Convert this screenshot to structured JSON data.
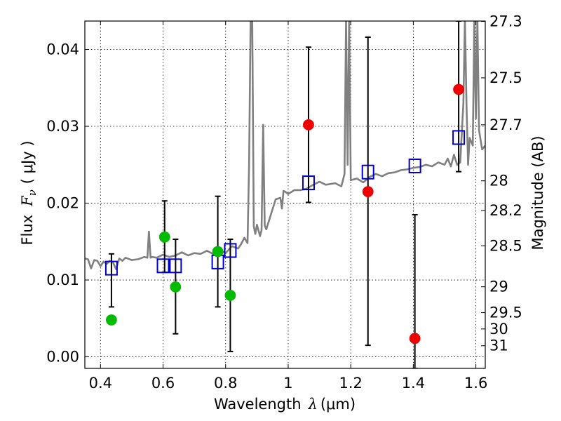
{
  "chart_data": {
    "type": "scatter",
    "xlabel": "Wavelength",
    "xlabel_symbol": "λ",
    "xlabel_unit": "(μm)",
    "ylabel": "Flux",
    "ylabel_symbol": "F",
    "ylabel_subscript": "ν",
    "ylabel_unit": "( μJy )",
    "y2label": "Magnitude (AB)",
    "xlim": [
      0.35,
      1.63
    ],
    "ylim": [
      -0.0015,
      0.0437
    ],
    "grid": true,
    "x_ticks": [
      0.4,
      0.6,
      0.8,
      1.0,
      1.2,
      1.4,
      1.6
    ],
    "x_tick_labels": [
      "0.4",
      "0.6",
      "0.8",
      "1",
      "1.2",
      "1.4",
      "1.6"
    ],
    "y_ticks": [
      0.0,
      0.01,
      0.02,
      0.03,
      0.04
    ],
    "y_tick_labels": [
      "0.00",
      "0.01",
      "0.02",
      "0.03",
      "0.04"
    ],
    "y2_tick_labels": [
      "27.3",
      "27.5",
      "27.7",
      "28",
      "28.2",
      "28.5",
      "29",
      "29.5",
      "30",
      "31"
    ],
    "spectrum": {
      "color": "#808080",
      "x": [
        0.35,
        0.36,
        0.37,
        0.38,
        0.39,
        0.4,
        0.41,
        0.42,
        0.43,
        0.44,
        0.45,
        0.46,
        0.47,
        0.48,
        0.5,
        0.52,
        0.54,
        0.55,
        0.555,
        0.56,
        0.565,
        0.58,
        0.6,
        0.62,
        0.64,
        0.66,
        0.68,
        0.7,
        0.72,
        0.74,
        0.76,
        0.78,
        0.8,
        0.82,
        0.84,
        0.85,
        0.86,
        0.87,
        0.875,
        0.88,
        0.885,
        0.89,
        0.895,
        0.9,
        0.91,
        0.915,
        0.92,
        0.925,
        0.93,
        0.94,
        0.96,
        0.975,
        0.98,
        0.985,
        0.99,
        1.0,
        1.02,
        1.04,
        1.06,
        1.08,
        1.1,
        1.12,
        1.15,
        1.17,
        1.18,
        1.185,
        1.19,
        1.195,
        1.2,
        1.22,
        1.24,
        1.26,
        1.28,
        1.3,
        1.32,
        1.34,
        1.36,
        1.38,
        1.4,
        1.42,
        1.44,
        1.46,
        1.48,
        1.5,
        1.51,
        1.52,
        1.53,
        1.54,
        1.55,
        1.56,
        1.565,
        1.57,
        1.575,
        1.58,
        1.59,
        1.595,
        1.6,
        1.605,
        1.61,
        1.62,
        1.63
      ],
      "y": [
        0.0128,
        0.0127,
        0.0115,
        0.0126,
        0.0125,
        0.0118,
        0.0124,
        0.0121,
        0.0125,
        0.0123,
        0.0114,
        0.0128,
        0.0125,
        0.0129,
        0.0126,
        0.0127,
        0.013,
        0.0129,
        0.0163,
        0.0129,
        0.013,
        0.0129,
        0.0133,
        0.013,
        0.0132,
        0.0136,
        0.0132,
        0.0135,
        0.0134,
        0.0138,
        0.0134,
        0.0139,
        0.0135,
        0.0144,
        0.0141,
        0.0147,
        0.0155,
        0.0148,
        0.025,
        0.044,
        0.044,
        0.017,
        0.016,
        0.0172,
        0.0157,
        0.0165,
        0.0302,
        0.0171,
        0.0166,
        0.0179,
        0.0205,
        0.0207,
        0.0193,
        0.0216,
        0.0215,
        0.0212,
        0.0217,
        0.0217,
        0.0219,
        0.0224,
        0.0228,
        0.0224,
        0.0226,
        0.0222,
        0.0238,
        0.044,
        0.025,
        0.044,
        0.023,
        0.0232,
        0.0227,
        0.0234,
        0.0238,
        0.0235,
        0.0239,
        0.024,
        0.0243,
        0.0244,
        0.0246,
        0.0247,
        0.025,
        0.0248,
        0.0253,
        0.025,
        0.0258,
        0.0248,
        0.0263,
        0.025,
        0.0253,
        0.033,
        0.044,
        0.033,
        0.025,
        0.0285,
        0.0275,
        0.044,
        0.031,
        0.044,
        0.0295,
        0.027,
        0.0275
      ]
    },
    "series": [
      {
        "name": "",
        "marker": "open-square",
        "color": "#0000cc",
        "points": [
          {
            "x": 0.435,
            "y": 0.0115
          },
          {
            "x": 0.6,
            "y": 0.0118
          },
          {
            "x": 0.64,
            "y": 0.0118
          },
          {
            "x": 0.775,
            "y": 0.0123
          },
          {
            "x": 0.815,
            "y": 0.0138
          },
          {
            "x": 1.065,
            "y": 0.0226
          },
          {
            "x": 1.255,
            "y": 0.024
          },
          {
            "x": 1.405,
            "y": 0.0248
          },
          {
            "x": 1.545,
            "y": 0.0285
          }
        ]
      },
      {
        "name": "",
        "marker": "filled-circle",
        "color": "#00bb00",
        "points": [
          {
            "x": 0.435,
            "y": 0.0048,
            "err_lo": 0.0065,
            "err_hi": 0.0134
          },
          {
            "x": 0.605,
            "y": 0.0156,
            "err_lo": 0.011,
            "err_hi": 0.0203
          },
          {
            "x": 0.64,
            "y": 0.0091,
            "err_lo": 0.003,
            "err_hi": 0.0153
          },
          {
            "x": 0.775,
            "y": 0.0137,
            "err_lo": 0.0065,
            "err_hi": 0.0209
          },
          {
            "x": 0.815,
            "y": 0.008,
            "err_lo": 0.0007,
            "err_hi": 0.0153
          }
        ]
      },
      {
        "name": "",
        "marker": "filled-circle",
        "color": "#ee0000",
        "points": [
          {
            "x": 1.065,
            "y": 0.0302,
            "err_lo": 0.0201,
            "err_hi": 0.0403
          },
          {
            "x": 1.255,
            "y": 0.0215,
            "err_lo": 0.0015,
            "err_hi": 0.0416
          },
          {
            "x": 1.405,
            "y": 0.0024,
            "err_lo": -0.0015,
            "err_hi": 0.0185
          },
          {
            "x": 1.545,
            "y": 0.0348,
            "err_lo": 0.0241,
            "err_hi": 0.0437
          }
        ]
      }
    ]
  }
}
